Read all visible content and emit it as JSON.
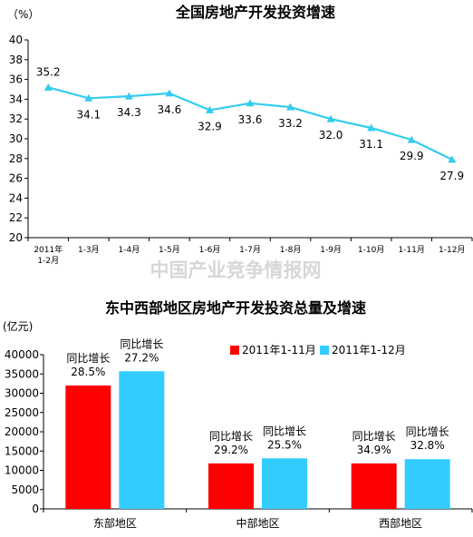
{
  "watermark": "中国产业竞争情报网",
  "charts": [
    {
      "type": "line",
      "title": "全国房地产开发投资增速",
      "y_unit": "（%）",
      "ylim": [
        20,
        40
      ],
      "yticks": [
        20,
        22,
        24,
        26,
        28,
        30,
        32,
        34,
        36,
        38,
        40
      ],
      "grid": false,
      "x": [
        "2011年 1-2月",
        "1-3月",
        "1-4月",
        "1-5月",
        "1-6月",
        "1-7月",
        "1-8月",
        "1-9月",
        "1-10月",
        "1-11月",
        "1-12月"
      ],
      "x_lines": [
        [
          "2011年",
          "1-2月"
        ],
        [
          "1-3月"
        ],
        [
          "1-4月"
        ],
        [
          "1-5月"
        ],
        [
          "1-6月"
        ],
        [
          "1-7月"
        ],
        [
          "1-8月"
        ],
        [
          "1-9月"
        ],
        [
          "1-10月"
        ],
        [
          "1-11月"
        ],
        [
          "1-12月"
        ]
      ],
      "values": [
        35.2,
        34.1,
        34.3,
        34.6,
        32.9,
        33.6,
        33.2,
        32.0,
        31.1,
        29.9,
        27.9
      ],
      "labels": [
        "35.2",
        "34.1",
        "34.3",
        "34.6",
        "32.9",
        "33.6",
        "33.2",
        "32.0",
        "31.1",
        "29.9",
        "27.9"
      ],
      "color": "#33ccee"
    },
    {
      "type": "bar",
      "title": "东中西部地区房地产开发投资总量及增速",
      "y_unit": "(亿元)",
      "ylim": [
        0,
        40000
      ],
      "yticks": [
        0,
        5000,
        10000,
        15000,
        20000,
        25000,
        30000,
        35000,
        40000
      ],
      "grid": false,
      "legend_position": "top-right",
      "categories": [
        "东部地区",
        "中部地区",
        "西部地区"
      ],
      "series": [
        {
          "name": "2011年1-11月",
          "color": "#ff0000",
          "values": [
            32000,
            11800,
            11800
          ],
          "growth_label": "同比增长",
          "growth": [
            "28.5%",
            "29.2%",
            "34.9%"
          ]
        },
        {
          "name": "2011年1-12月",
          "color": "#33ccff",
          "values": [
            35700,
            13100,
            12900
          ],
          "growth_label": "同比增长",
          "growth": [
            "27.2%",
            "25.5%",
            "32.8%"
          ]
        }
      ]
    }
  ]
}
